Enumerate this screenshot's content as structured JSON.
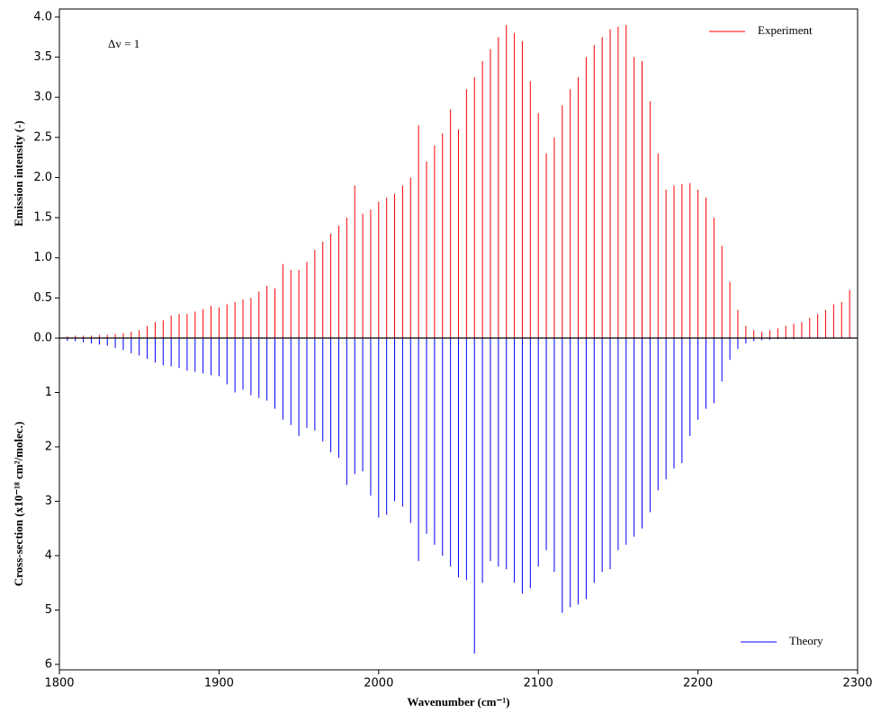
{
  "chart_data": [
    {
      "type": "stem",
      "ylabel": "Emission intensity (-)",
      "annotation": "Δv = 1",
      "legend": "upper right",
      "xlim": [
        1800,
        2300
      ],
      "ylim": [
        0,
        4.1
      ],
      "yticks": [
        {
          "value": 0,
          "label": "0.0"
        },
        0.5,
        {
          "value": 1,
          "label": "1.0"
        },
        1.5,
        {
          "value": 2,
          "label": "2.0"
        },
        2.5,
        {
          "value": 3,
          "label": "3.0"
        },
        3.5,
        {
          "value": 4,
          "label": "4.0"
        }
      ],
      "x": [
        1800,
        1805,
        1810,
        1815,
        1820,
        1825,
        1830,
        1835,
        1840,
        1845,
        1850,
        1855,
        1860,
        1865,
        1870,
        1875,
        1880,
        1885,
        1890,
        1895,
        1900,
        1905,
        1910,
        1915,
        1920,
        1925,
        1930,
        1935,
        1940,
        1945,
        1950,
        1955,
        1960,
        1965,
        1970,
        1975,
        1980,
        1985,
        1990,
        1995,
        2000,
        2005,
        2010,
        2015,
        2020,
        2025,
        2030,
        2035,
        2040,
        2045,
        2050,
        2055,
        2060,
        2065,
        2070,
        2075,
        2080,
        2085,
        2090,
        2095,
        2100,
        2105,
        2110,
        2115,
        2120,
        2125,
        2130,
        2135,
        2140,
        2145,
        2150,
        2155,
        2160,
        2165,
        2170,
        2175,
        2180,
        2185,
        2190,
        2195,
        2200,
        2205,
        2210,
        2215,
        2220,
        2225,
        2230,
        2235,
        2240,
        2245,
        2250,
        2255,
        2260,
        2265,
        2270,
        2275,
        2280,
        2285,
        2290,
        2295,
        2300
      ],
      "series": [
        {
          "name": "Experiment",
          "color": "#ff0000",
          "values": [
            0.02,
            0.02,
            0.03,
            0.03,
            0.03,
            0.04,
            0.04,
            0.05,
            0.06,
            0.08,
            0.1,
            0.15,
            0.2,
            0.22,
            0.28,
            0.3,
            0.3,
            0.33,
            0.36,
            0.4,
            0.38,
            0.42,
            0.45,
            0.48,
            0.5,
            0.58,
            0.65,
            0.62,
            0.92,
            0.85,
            0.85,
            0.95,
            1.1,
            1.2,
            1.3,
            1.4,
            1.5,
            1.9,
            1.55,
            1.6,
            1.7,
            1.75,
            1.8,
            1.9,
            2.0,
            2.65,
            2.2,
            2.4,
            2.55,
            2.85,
            2.6,
            3.1,
            3.25,
            3.45,
            3.6,
            3.75,
            3.9,
            3.8,
            3.7,
            3.2,
            2.8,
            2.3,
            2.5,
            2.9,
            3.1,
            3.25,
            3.5,
            3.65,
            3.75,
            3.85,
            3.88,
            3.9,
            3.5,
            3.45,
            2.95,
            2.3,
            1.85,
            1.9,
            1.92,
            1.93,
            1.85,
            1.75,
            1.5,
            1.15,
            0.7,
            0.35,
            0.15,
            0.1,
            0.08,
            0.1,
            0.12,
            0.15,
            0.18,
            0.2,
            0.25,
            0.3,
            0.35,
            0.42,
            0.45,
            0.6,
            0.8
          ]
        }
      ]
    },
    {
      "type": "stem",
      "ylabel": "Cross-section (x10⁻¹⁸ cm²/molec.)",
      "xlabel": "Wavenumber (cm⁻¹)",
      "legend": "lower right",
      "inverted": true,
      "xlim": [
        1800,
        2300
      ],
      "xticks": [
        1800,
        1900,
        2000,
        2100,
        2200,
        2300
      ],
      "ylim": [
        0,
        6.1
      ],
      "yticks": [
        1,
        2,
        3,
        4,
        5,
        6
      ],
      "x": [
        1800,
        1805,
        1810,
        1815,
        1820,
        1825,
        1830,
        1835,
        1840,
        1845,
        1850,
        1855,
        1860,
        1865,
        1870,
        1875,
        1880,
        1885,
        1890,
        1895,
        1900,
        1905,
        1910,
        1915,
        1920,
        1925,
        1930,
        1935,
        1940,
        1945,
        1950,
        1955,
        1960,
        1965,
        1970,
        1975,
        1980,
        1985,
        1990,
        1995,
        2000,
        2005,
        2010,
        2015,
        2020,
        2025,
        2030,
        2035,
        2040,
        2045,
        2050,
        2055,
        2060,
        2065,
        2070,
        2075,
        2080,
        2085,
        2090,
        2095,
        2100,
        2105,
        2110,
        2115,
        2120,
        2125,
        2130,
        2135,
        2140,
        2145,
        2150,
        2155,
        2160,
        2165,
        2170,
        2175,
        2180,
        2185,
        2190,
        2195,
        2200,
        2205,
        2210,
        2215,
        2220,
        2225,
        2230,
        2235,
        2240,
        2245,
        2250,
        2255,
        2260,
        2265,
        2270,
        2275,
        2280,
        2285,
        2290,
        2295,
        2300
      ],
      "series": [
        {
          "name": "Theory",
          "color": "#0000ff",
          "values": [
            0.05,
            0.05,
            0.06,
            0.08,
            0.1,
            0.12,
            0.14,
            0.18,
            0.22,
            0.28,
            0.32,
            0.38,
            0.45,
            0.5,
            0.52,
            0.55,
            0.6,
            0.62,
            0.65,
            0.68,
            0.7,
            0.85,
            1.0,
            0.95,
            1.05,
            1.1,
            1.15,
            1.3,
            1.5,
            1.6,
            1.8,
            1.65,
            1.7,
            1.9,
            2.1,
            2.2,
            2.7,
            2.5,
            2.45,
            2.9,
            3.3,
            3.25,
            3.0,
            3.1,
            3.4,
            4.1,
            3.6,
            3.8,
            4.0,
            4.2,
            4.4,
            4.45,
            5.8,
            4.5,
            4.1,
            4.2,
            4.25,
            4.5,
            4.7,
            4.6,
            4.2,
            3.9,
            4.3,
            5.05,
            4.95,
            4.9,
            4.8,
            4.5,
            4.3,
            4.25,
            3.9,
            3.8,
            3.65,
            3.5,
            3.2,
            2.8,
            2.6,
            2.4,
            2.3,
            1.8,
            1.5,
            1.3,
            1.2,
            0.8,
            0.4,
            0.2,
            0.1,
            0.06,
            0.04,
            0.03,
            0.02,
            0.02,
            0.02,
            0.01,
            0.01,
            0.01,
            0.01,
            0.01,
            0.01,
            0.01,
            0.01
          ]
        }
      ]
    }
  ]
}
